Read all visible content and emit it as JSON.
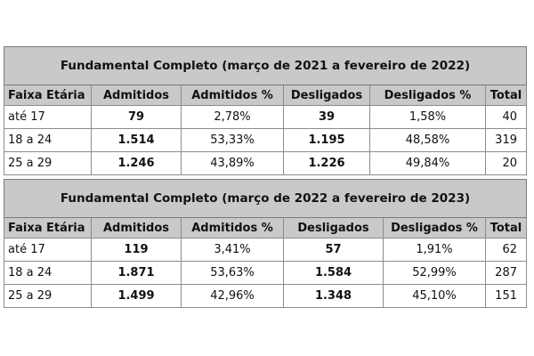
{
  "tables": [
    {
      "title": "Fundamental Completo (março de 2021 a  fevereiro de 2022)",
      "headers": [
        "Faixa Etária",
        "Admitidos",
        "Admitidos %",
        "Desligados",
        "Desligados %",
        "Total"
      ],
      "rows": [
        [
          "até 17",
          "79",
          "2,78%",
          "39",
          "1,58%",
          "40"
        ],
        [
          "18 a 24",
          "1.514",
          "53,33%",
          "1.195",
          "48,58%",
          "319"
        ],
        [
          "25 a 29",
          "1.246",
          "43,89%",
          "1.226",
          "49,84%",
          "20"
        ]
      ]
    },
    {
      "title": "Fundamental Completo (março de 2022 a  fevereiro de 2023)",
      "headers": [
        "Faixa Etária",
        "Admitidos",
        "Admitidos %",
        "Desligados",
        "Desligados %",
        "Total"
      ],
      "rows": [
        [
          "até 17",
          "119",
          "3,41%",
          "57",
          "1,91%",
          "62"
        ],
        [
          "18 a 24",
          "1.871",
          "53,63%",
          "1.584",
          "52,99%",
          "287"
        ],
        [
          "25 a 29",
          "1.499",
          "42,96%",
          "1.348",
          "45,10%",
          "151"
        ]
      ]
    }
  ]
}
